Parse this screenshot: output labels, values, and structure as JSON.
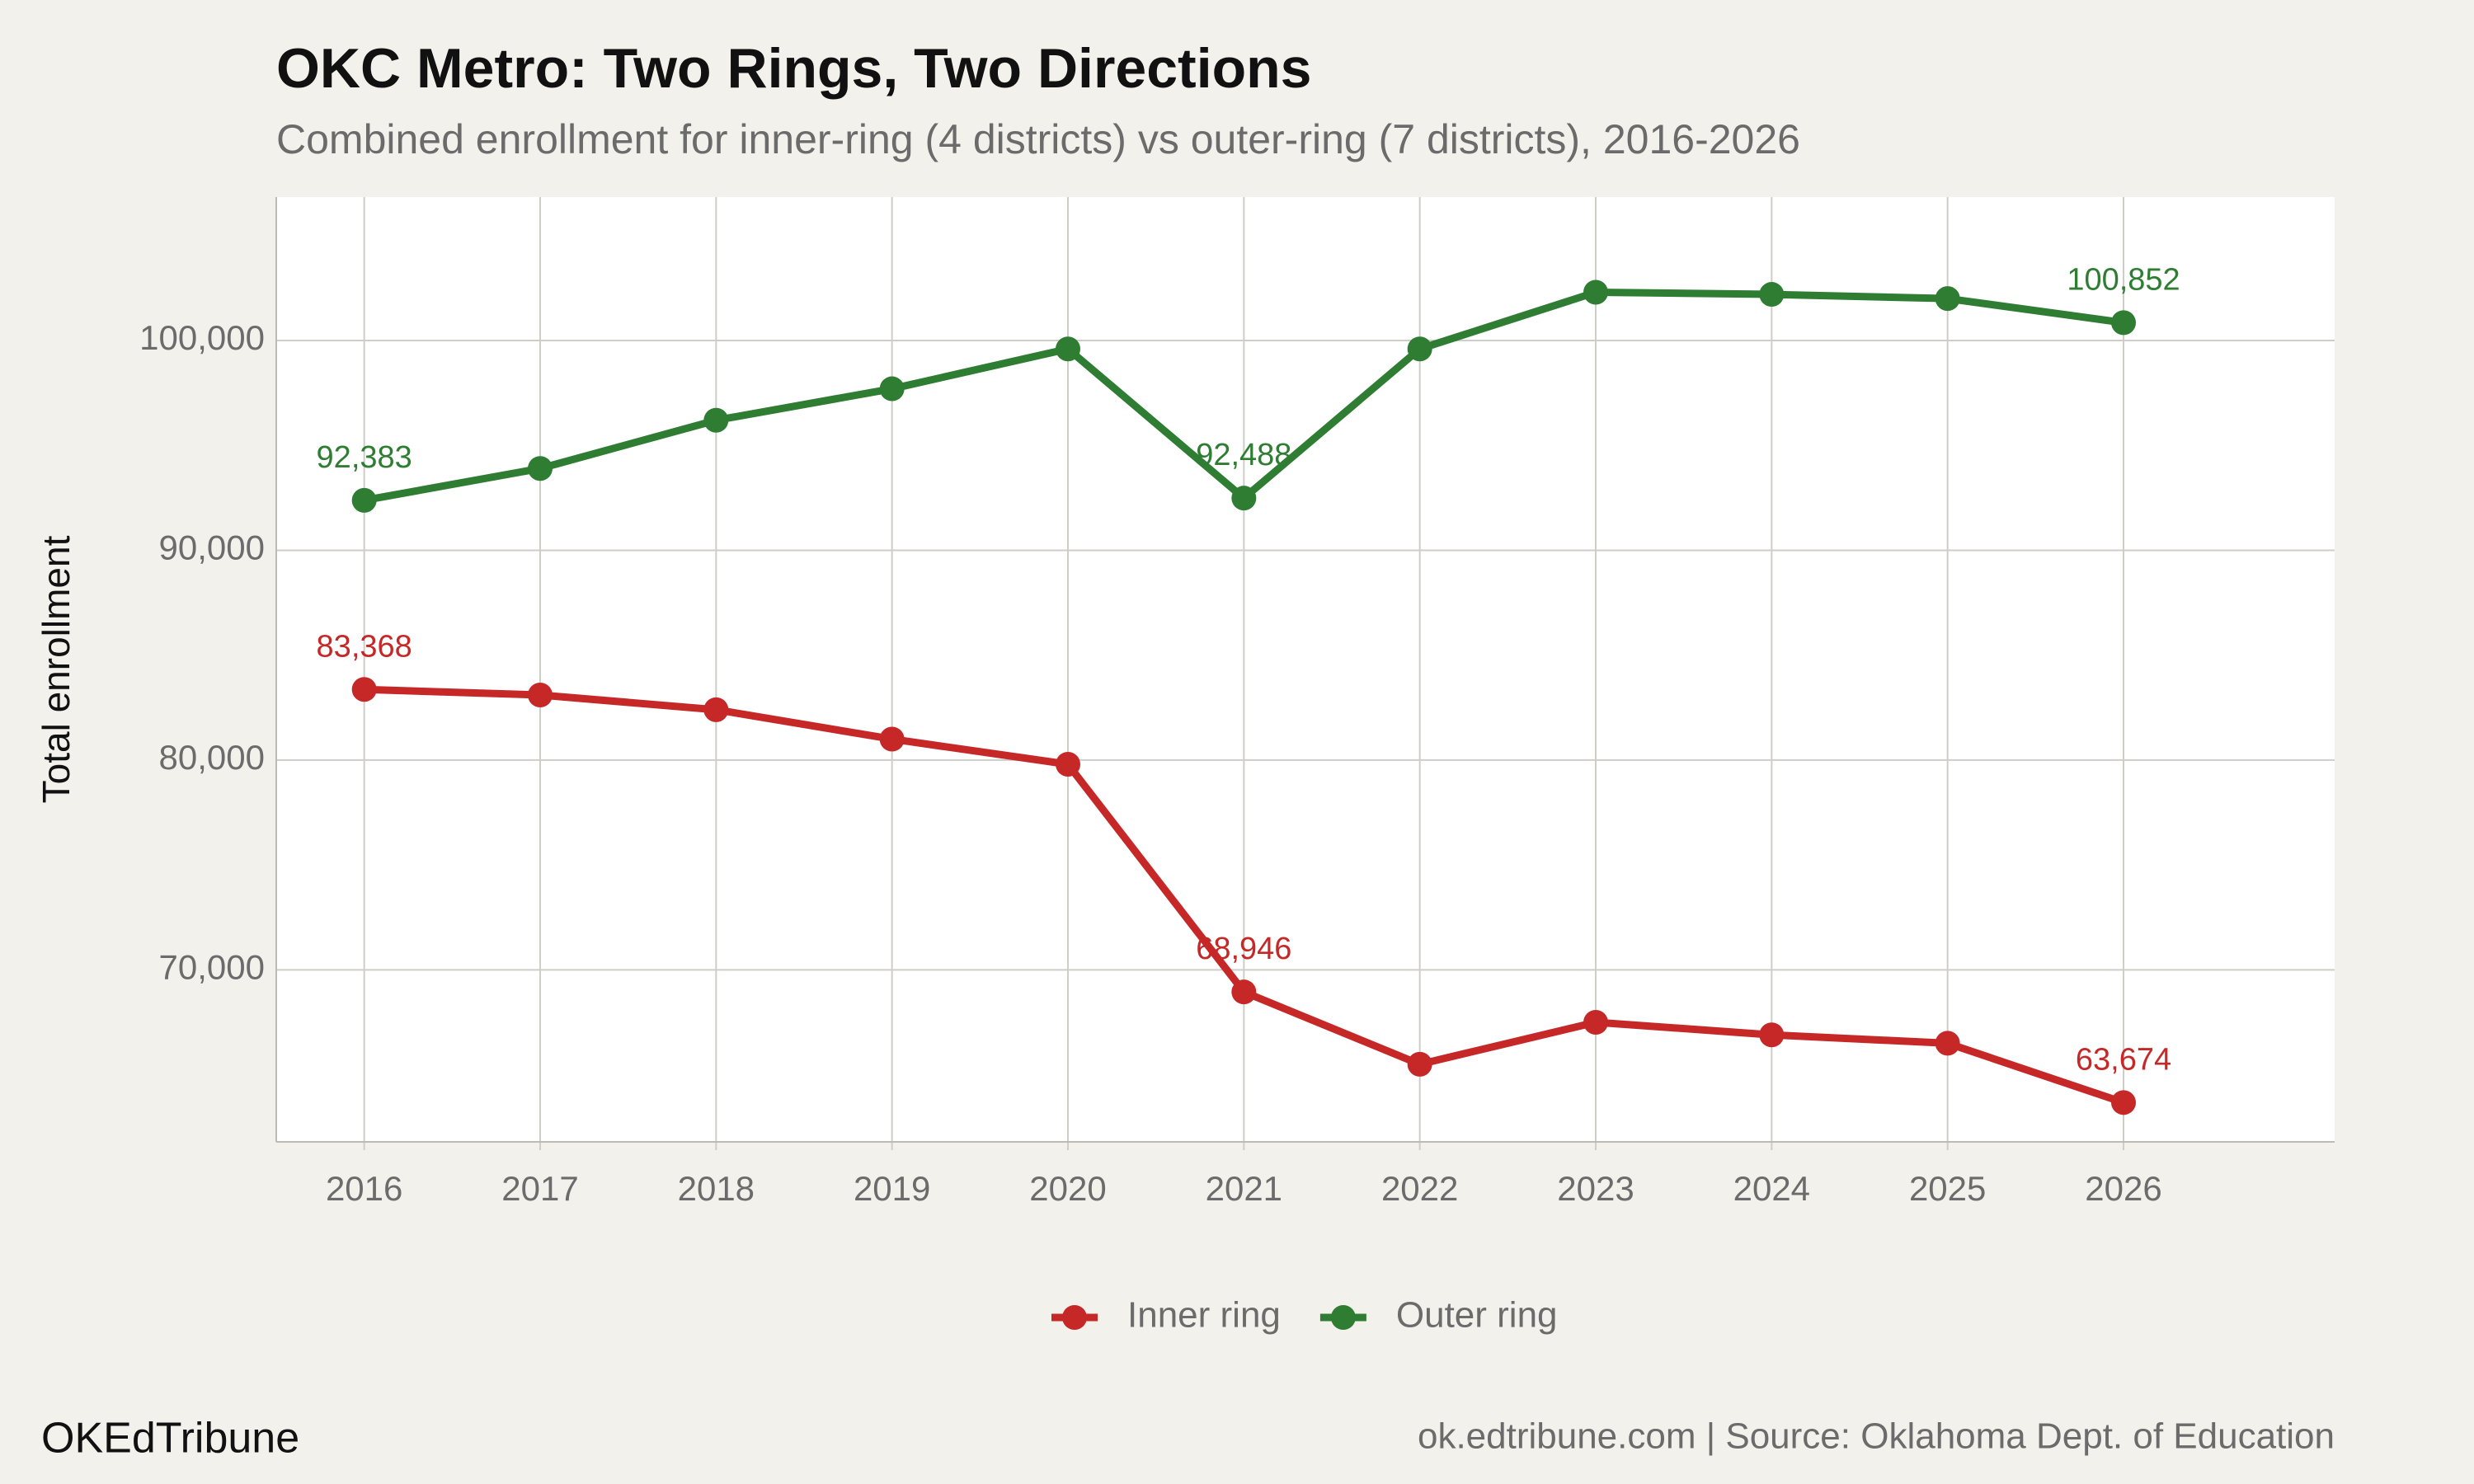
{
  "chart_data": {
    "type": "line",
    "title": "OKC Metro: Two Rings, Two Directions",
    "subtitle": "Combined enrollment for inner-ring (4 districts) vs outer-ring (7 districts), 2016-2026",
    "y_label": "Total enrollment",
    "x": [
      2016,
      2017,
      2018,
      2019,
      2020,
      2021,
      2022,
      2023,
      2024,
      2025,
      2026
    ],
    "xlim": [
      2015.5,
      2027.2
    ],
    "xticks": [
      2016,
      2017,
      2018,
      2019,
      2020,
      2021,
      2022,
      2023,
      2024,
      2025,
      2026
    ],
    "ylim": [
      61800,
      106840
    ],
    "yticks": [
      {
        "value": 70000,
        "label": "70,000"
      },
      {
        "value": 80000,
        "label": "80,000"
      },
      {
        "value": 90000,
        "label": "90,000"
      },
      {
        "value": 100000,
        "label": "100,000"
      }
    ],
    "grid": true,
    "legend": "bottom",
    "series": [
      {
        "name": "Inner ring",
        "color": "#c62828",
        "values": [
          83368,
          83100,
          82400,
          81000,
          79800,
          68946,
          65500,
          67500,
          66900,
          66500,
          63674
        ],
        "value_labels": [
          "83,368",
          null,
          null,
          null,
          null,
          "68,946",
          null,
          null,
          null,
          null,
          "63,674"
        ]
      },
      {
        "name": "Outer ring",
        "color": "#2e7d32",
        "values": [
          92383,
          93900,
          96200,
          97700,
          99600,
          92488,
          99600,
          102300,
          102200,
          102000,
          100852
        ],
        "value_labels": [
          "92,383",
          null,
          null,
          null,
          null,
          "92,488",
          null,
          null,
          null,
          null,
          "100,852"
        ]
      }
    ],
    "brand": "OKEdTribune",
    "source": "ok.edtribune.com | Source: Oklahoma Dept. of Education"
  }
}
